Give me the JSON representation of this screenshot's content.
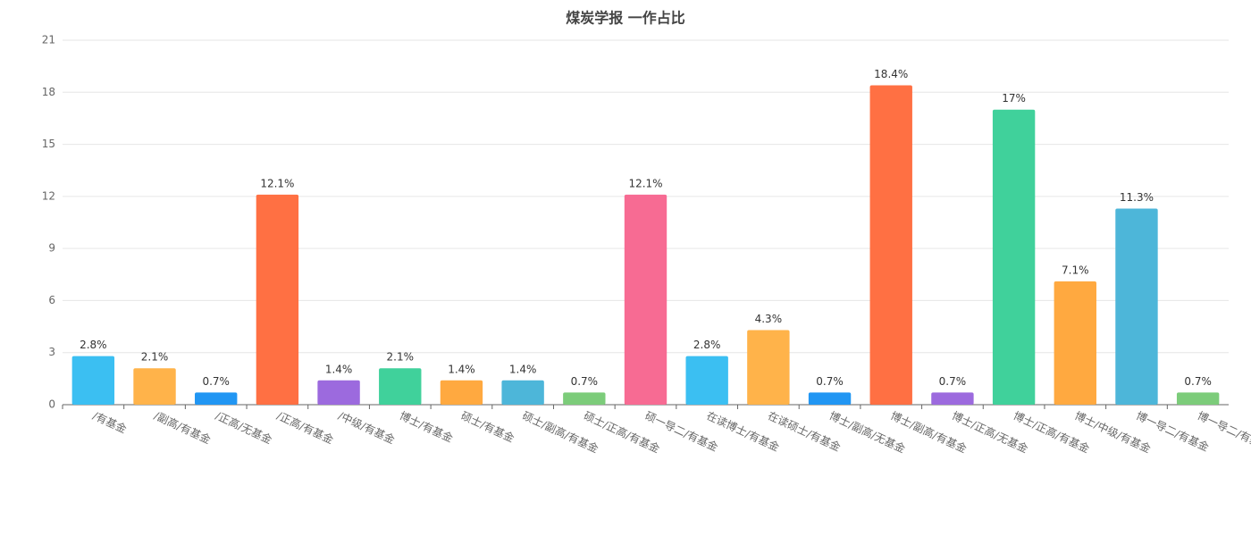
{
  "chart_data": {
    "type": "bar",
    "title": "煤炭学报 一作占比",
    "categories": [
      "/有基金",
      "/副高/有基金",
      "/正高/无基金",
      "/正高/有基金",
      "/中级/有基金",
      "博士/有基金",
      "硕士/有基金",
      "硕士/副高/有基金",
      "硕士/正高/有基金",
      "硕一导二/有基金",
      "在读博士/有基金",
      "在读硕士/有基金",
      "博士/副高/无基金",
      "博士/副高/有基金",
      "博士/正高/无基金",
      "博士/正高/有基金",
      "博士/中级/有基金",
      "博一导二/有基金",
      "博一导二/有基金"
    ],
    "values": [
      2.8,
      2.1,
      0.7,
      12.1,
      1.4,
      2.1,
      1.4,
      1.4,
      0.7,
      12.1,
      2.8,
      4.3,
      0.7,
      18.4,
      0.7,
      17,
      7.1,
      11.3,
      0.7
    ],
    "value_labels": [
      "2.8%",
      "2.1%",
      "0.7%",
      "12.1%",
      "1.4%",
      "2.1%",
      "1.4%",
      "1.4%",
      "0.7%",
      "12.1%",
      "2.8%",
      "4.3%",
      "0.7%",
      "18.4%",
      "0.7%",
      "17%",
      "7.1%",
      "11.3%",
      "0.7%"
    ],
    "colors": [
      "#3bbff2",
      "#ffb34a",
      "#2196f3",
      "#ff7043",
      "#9c6ade",
      "#40d19b",
      "#ffa940",
      "#4db6d9",
      "#7ccc7a",
      "#f76b93",
      "#3bbff2",
      "#ffb34a",
      "#2196f3",
      "#ff7043",
      "#9c6ade",
      "#40d19b",
      "#ffa940",
      "#4db6d9",
      "#7ccc7a"
    ],
    "ylim": [
      0,
      21
    ],
    "yticks": [
      0,
      3,
      6,
      9,
      12,
      15,
      18,
      21
    ],
    "grid": true
  }
}
